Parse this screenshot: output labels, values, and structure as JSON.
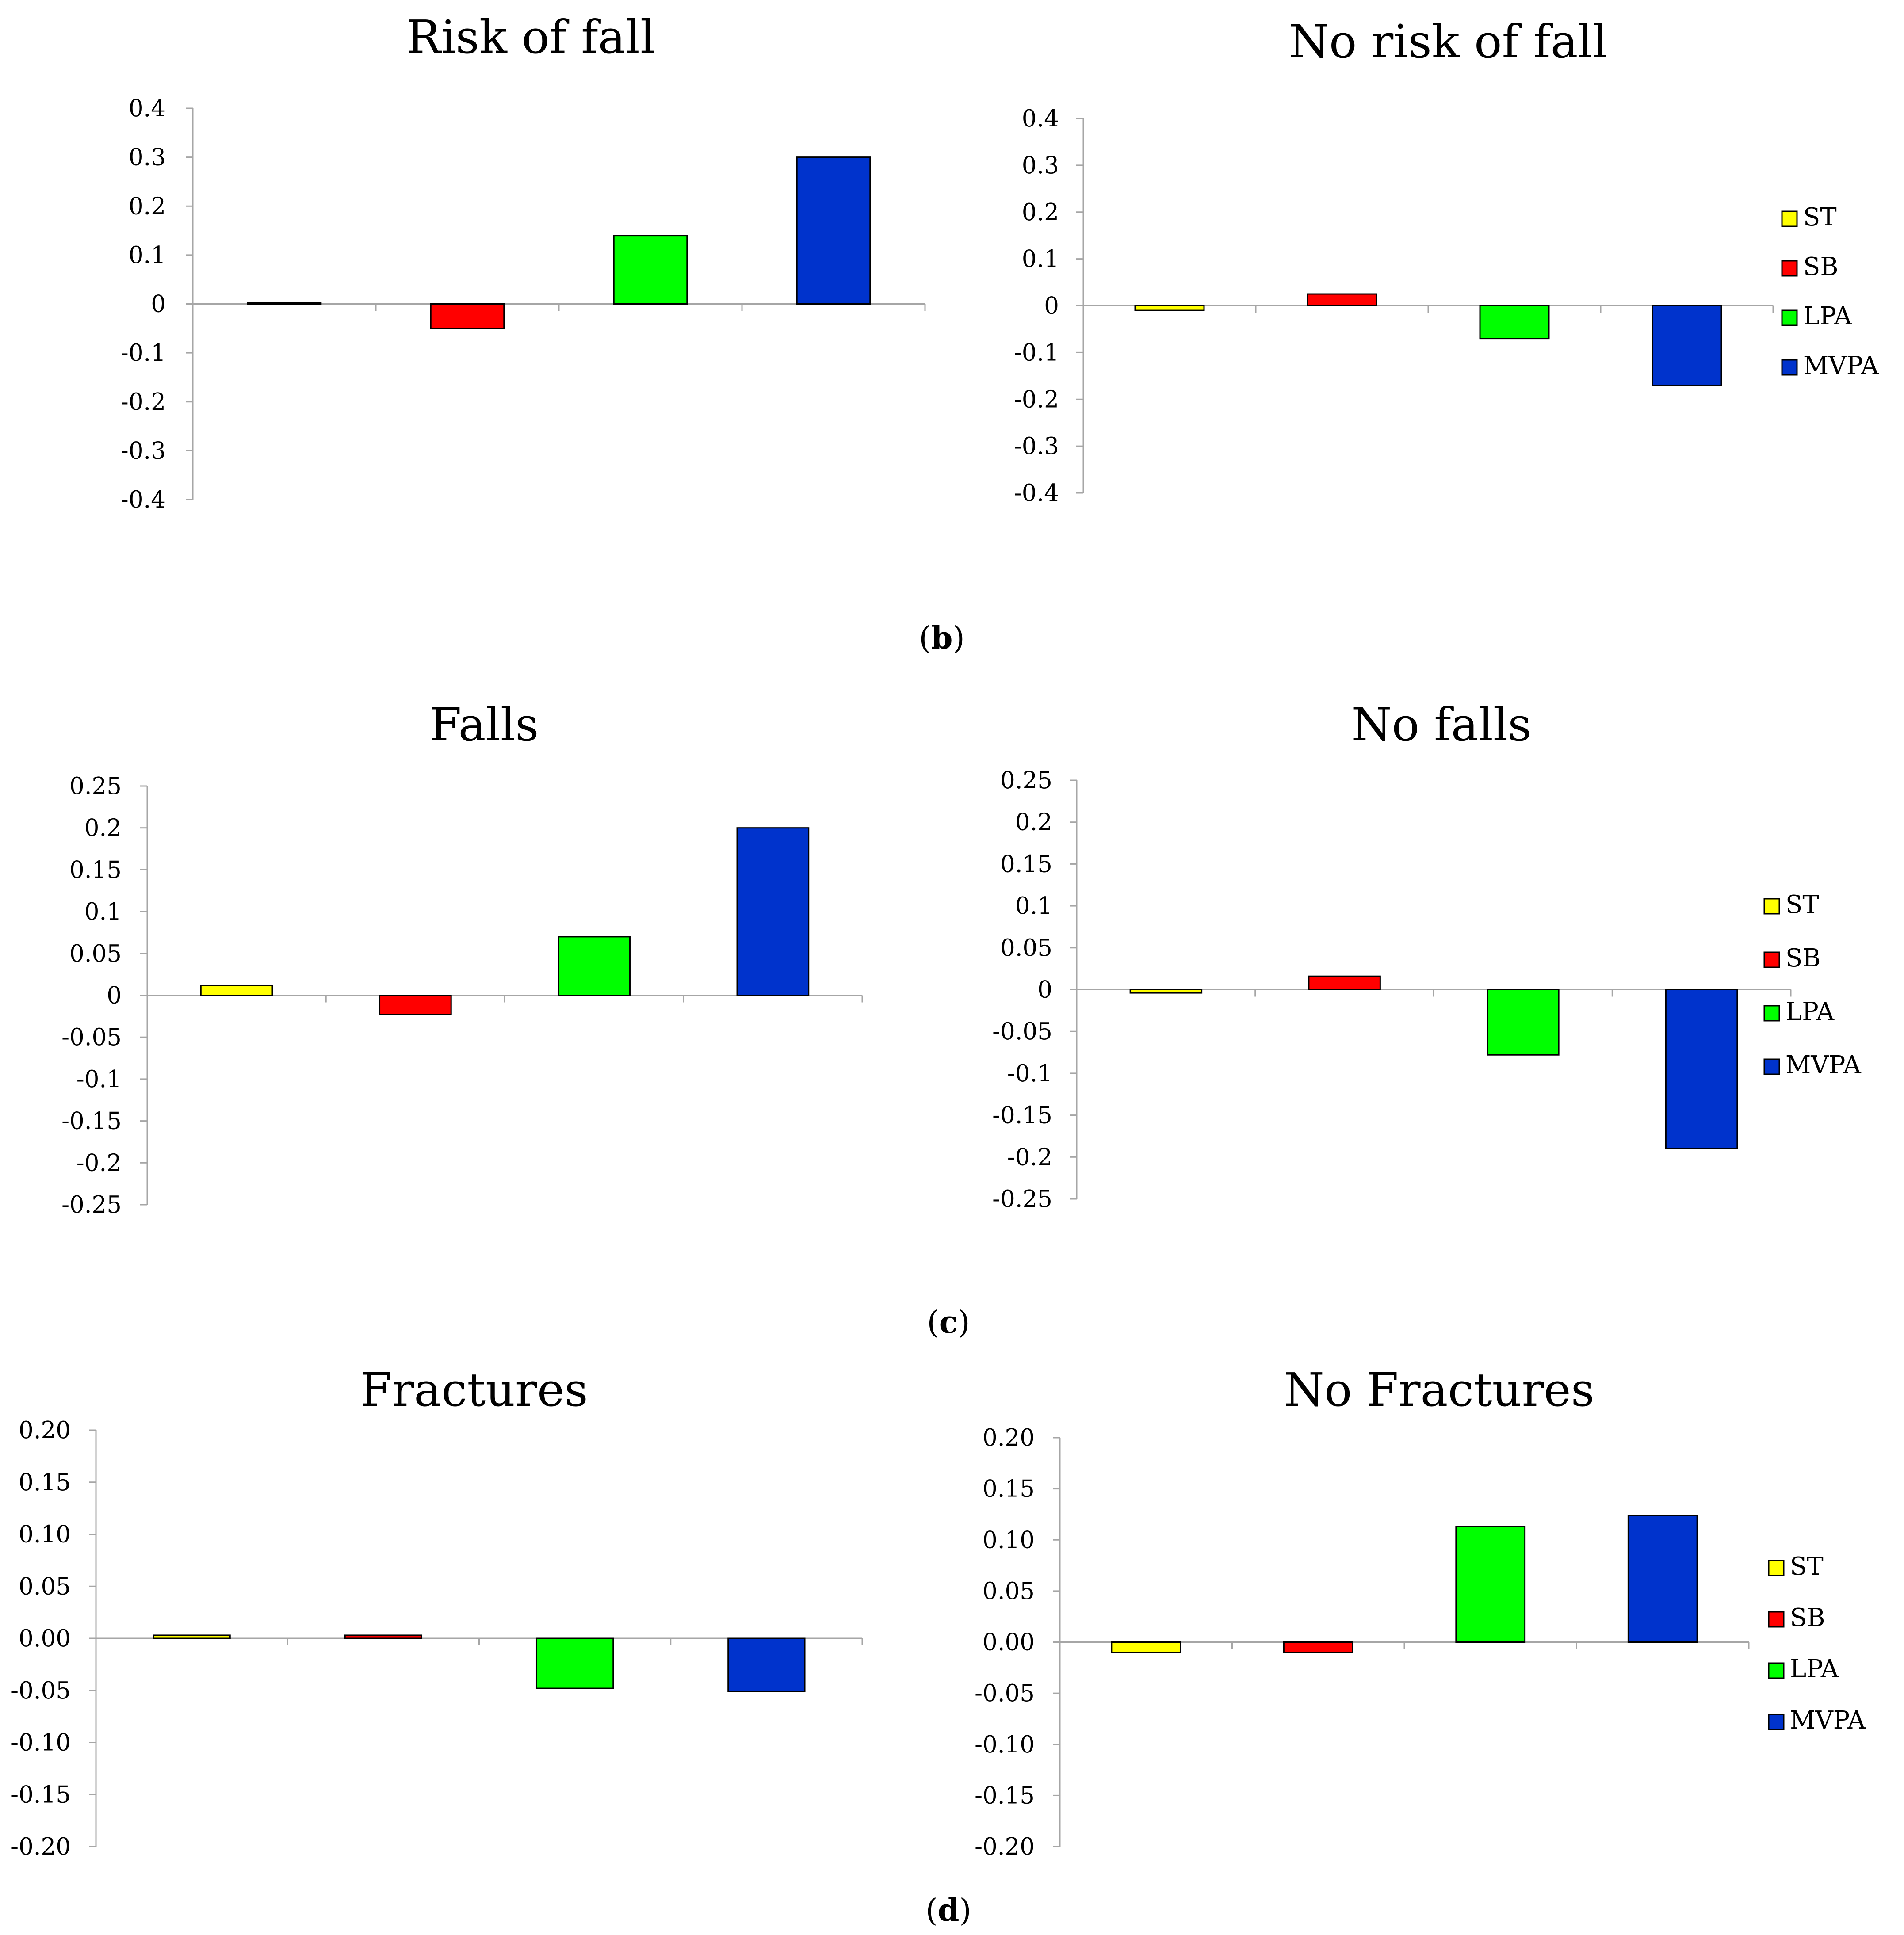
{
  "figure": {
    "colors": {
      "ST": "#ffff00",
      "SB": "#ff0000",
      "LPA": "#00ff00",
      "MVPA": "#0033cc",
      "axis": "#a6a6a6",
      "bar_stroke": "#000000"
    },
    "legend": [
      {
        "key": "ST",
        "label": "ST"
      },
      {
        "key": "SB",
        "label": "SB"
      },
      {
        "key": "LPA",
        "label": "LPA"
      },
      {
        "key": "MVPA",
        "label": "MVPA"
      }
    ],
    "captions": [
      {
        "open": "(",
        "letter": "b",
        "close": ")"
      },
      {
        "open": "(",
        "letter": "c",
        "close": ")"
      },
      {
        "open": "(",
        "letter": "d",
        "close": ")"
      }
    ]
  },
  "chart_data": [
    {
      "type": "bar",
      "title": "Risk of fall",
      "categories": [
        "ST",
        "SB",
        "LPA",
        "MVPA"
      ],
      "values": [
        0.003,
        -0.05,
        0.14,
        0.3
      ],
      "ylim": [
        -0.4,
        0.4
      ],
      "yticks": [
        "0.4",
        "0.3",
        "0.2",
        "0.1",
        "0",
        "-0.1",
        "-0.2",
        "-0.3",
        "-0.4"
      ],
      "legend": false
    },
    {
      "type": "bar",
      "title": "No risk of fall",
      "categories": [
        "ST",
        "SB",
        "LPA",
        "MVPA"
      ],
      "values": [
        -0.01,
        0.025,
        -0.07,
        -0.17
      ],
      "ylim": [
        -0.4,
        0.4
      ],
      "yticks": [
        "0.4",
        "0.3",
        "0.2",
        "0.1",
        "0",
        "-0.1",
        "-0.2",
        "-0.3",
        "-0.4"
      ],
      "legend": true
    },
    {
      "type": "bar",
      "title": "Falls",
      "categories": [
        "ST",
        "SB",
        "LPA",
        "MVPA"
      ],
      "values": [
        0.012,
        -0.023,
        0.07,
        0.2
      ],
      "ylim": [
        -0.25,
        0.25
      ],
      "yticks": [
        "0.25",
        "0.2",
        "0.15",
        "0.1",
        "0.05",
        "0",
        "-0.05",
        "-0.1",
        "-0.15",
        "-0.2",
        "-0.25"
      ],
      "legend": false
    },
    {
      "type": "bar",
      "title": "No falls",
      "categories": [
        "ST",
        "SB",
        "LPA",
        "MVPA"
      ],
      "values": [
        -0.004,
        0.016,
        -0.078,
        -0.19
      ],
      "ylim": [
        -0.25,
        0.25
      ],
      "yticks": [
        "0.25",
        "0.2",
        "0.15",
        "0.1",
        "0.05",
        "0",
        "-0.05",
        "-0.1",
        "-0.15",
        "-0.2",
        "-0.25"
      ],
      "legend": true
    },
    {
      "type": "bar",
      "title": "Fractures",
      "categories": [
        "ST",
        "SB",
        "LPA",
        "MVPA"
      ],
      "values": [
        0.003,
        0.003,
        -0.048,
        -0.051
      ],
      "ylim": [
        -0.2,
        0.2
      ],
      "yticks": [
        "0.20",
        "0.15",
        "0.10",
        "0.05",
        "0.00",
        "-0.05",
        "-0.10",
        "-0.15",
        "-0.20"
      ],
      "legend": false
    },
    {
      "type": "bar",
      "title": "No Fractures",
      "categories": [
        "ST",
        "SB",
        "LPA",
        "MVPA"
      ],
      "values": [
        -0.01,
        -0.01,
        0.113,
        0.124
      ],
      "ylim": [
        -0.2,
        0.2
      ],
      "yticks": [
        "0.20",
        "0.15",
        "0.10",
        "0.05",
        "0.00",
        "-0.05",
        "-0.10",
        "-0.15",
        "-0.20"
      ],
      "legend": true
    }
  ]
}
